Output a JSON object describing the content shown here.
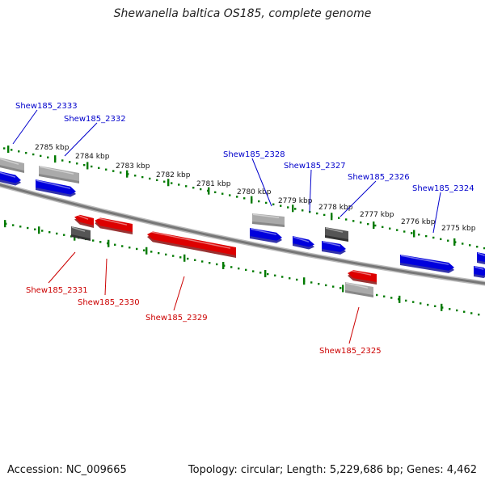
{
  "title": "Shewanella baltica OS185, complete genome",
  "footer": {
    "accession": "Accession: NC_009665",
    "genome_info": "Topology: circular; Length: 5,229,686 bp; Genes: 4,462"
  },
  "colors": {
    "forward_gene": "#0000dd",
    "reverse_gene": "#dd0000",
    "hypothetical_gene": "#aaaaaa",
    "pseudo_gene": "#555555",
    "backbone": "#777777",
    "tick_marks": "#007a00",
    "label_forward": "#0000cc",
    "label_reverse": "#cc0000"
  },
  "scale_ticks": [
    {
      "label": "2785 kbp",
      "pos": 2785
    },
    {
      "label": "2784 kbp",
      "pos": 2784
    },
    {
      "label": "2783 kbp",
      "pos": 2783
    },
    {
      "label": "2782 kbp",
      "pos": 2782
    },
    {
      "label": "2781 kbp",
      "pos": 2781
    },
    {
      "label": "2780 kbp",
      "pos": 2780
    },
    {
      "label": "2779 kbp",
      "pos": 2779
    },
    {
      "label": "2778 kbp",
      "pos": 2778
    },
    {
      "label": "2777 kbp",
      "pos": 2777
    },
    {
      "label": "2776 kbp",
      "pos": 2776
    },
    {
      "label": "2775 kbp",
      "pos": 2775
    }
  ],
  "gene_labels": [
    {
      "label": "Shew185_2333",
      "strand": "forward"
    },
    {
      "label": "Shew185_2332",
      "strand": "forward"
    },
    {
      "label": "Shew185_2328",
      "strand": "forward"
    },
    {
      "label": "Shew185_2327",
      "strand": "forward"
    },
    {
      "label": "Shew185_2326",
      "strand": "forward"
    },
    {
      "label": "Shew185_2324",
      "strand": "forward"
    },
    {
      "label": "Shew185_2331",
      "strand": "reverse"
    },
    {
      "label": "Shew185_2330",
      "strand": "reverse"
    },
    {
      "label": "Shew185_2329",
      "strand": "reverse"
    },
    {
      "label": "Shew185_2325",
      "strand": "reverse"
    }
  ]
}
